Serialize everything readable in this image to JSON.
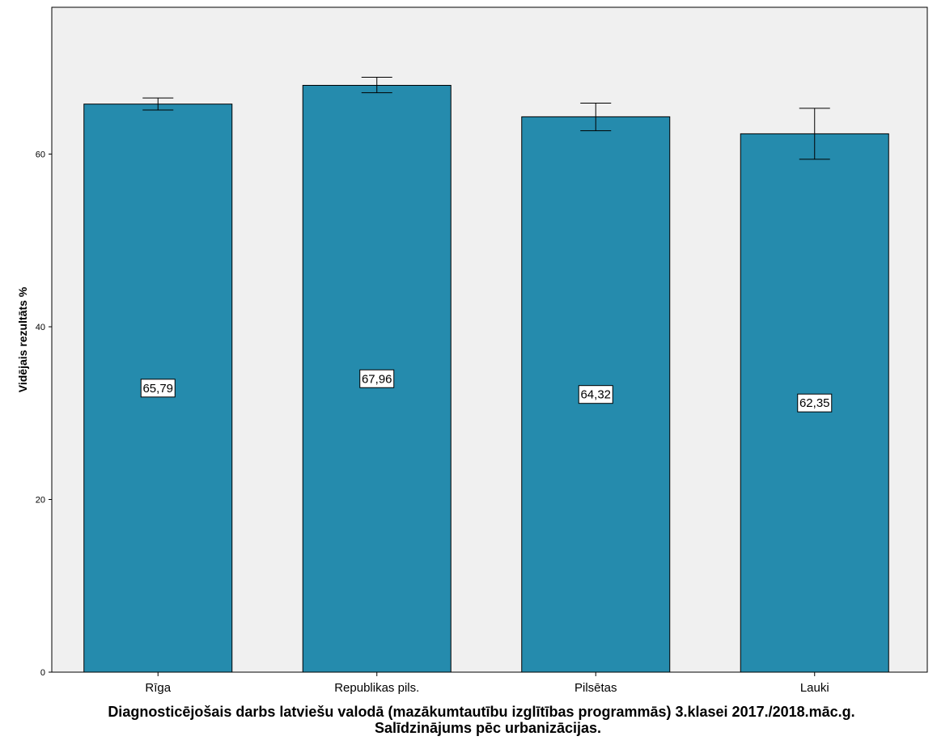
{
  "chart_data": {
    "type": "bar",
    "categories": [
      "Rīga",
      "Republikas pils.",
      "Pilsētas",
      "Lauki"
    ],
    "values": [
      65.79,
      67.96,
      64.32,
      62.35
    ],
    "value_labels": [
      "65,79",
      "67,96",
      "64,32",
      "62,35"
    ],
    "error_bars": [
      {
        "low": 65.1,
        "high": 66.5
      },
      {
        "low": 67.1,
        "high": 68.9
      },
      {
        "low": 62.7,
        "high": 65.9
      },
      {
        "low": 59.4,
        "high": 65.3
      }
    ],
    "ylabel": "Vidējais rezultāts %",
    "xlabel_lines": [
      "Diagnosticējošais darbs latviešu valodā (mazākumtautību izglītības programmās) 3.klasei 2017./2018.māc.g.",
      "Salīdzinājums pēc urbanizācijas."
    ],
    "ylim": [
      0,
      77
    ],
    "yticks": [
      0,
      20,
      40,
      60
    ],
    "grid": false,
    "colors": {
      "bar": "#258bad",
      "plot_background": "#f0f0f0",
      "outline": "#000000"
    }
  }
}
